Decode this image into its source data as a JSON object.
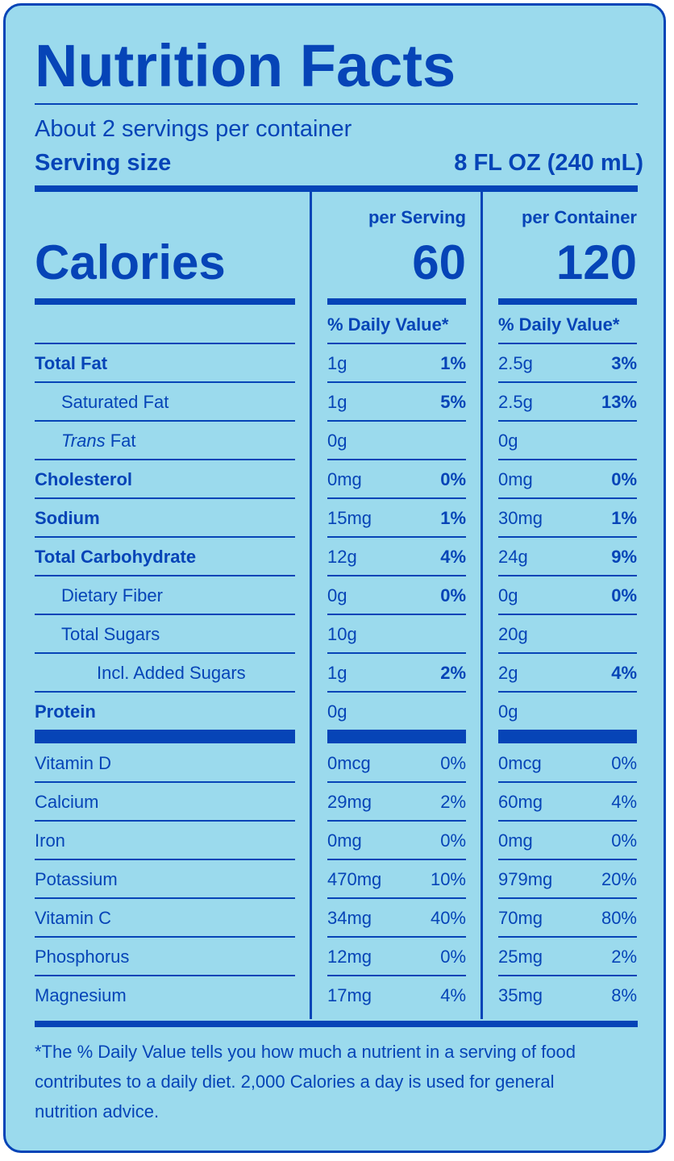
{
  "title": "Nutrition Facts",
  "servings_per_container": "About 2 servings per container",
  "serving_size_label": "Serving size",
  "serving_size_value": "8 FL OZ (240 mL)",
  "columns": {
    "per_serving": "per Serving",
    "per_container": "per Container",
    "daily_value": "% Daily Value*"
  },
  "calories": {
    "label": "Calories",
    "per_serving": "60",
    "per_container": "120"
  },
  "nutrients": [
    {
      "name": "Total Fat",
      "serving_amount": "1g",
      "serving_dv": "1%",
      "container_amount": "2.5g",
      "container_dv": "3%"
    },
    {
      "name": "Saturated Fat",
      "serving_amount": "1g",
      "serving_dv": "5%",
      "container_amount": "2.5g",
      "container_dv": "13%"
    },
    {
      "name_italic": "Trans",
      "name": " Fat",
      "serving_amount": "0g",
      "serving_dv": "",
      "container_amount": "0g",
      "container_dv": ""
    },
    {
      "name": "Cholesterol",
      "serving_amount": "0mg",
      "serving_dv": "0%",
      "container_amount": "0mg",
      "container_dv": "0%"
    },
    {
      "name": "Sodium",
      "serving_amount": "15mg",
      "serving_dv": "1%",
      "container_amount": "30mg",
      "container_dv": "1%"
    },
    {
      "name": "Total Carbohydrate",
      "serving_amount": "12g",
      "serving_dv": "4%",
      "container_amount": "24g",
      "container_dv": "9%"
    },
    {
      "name": "Dietary Fiber",
      "serving_amount": "0g",
      "serving_dv": "0%",
      "container_amount": "0g",
      "container_dv": "0%"
    },
    {
      "name": "Total Sugars",
      "serving_amount": "10g",
      "serving_dv": "",
      "container_amount": "20g",
      "container_dv": ""
    },
    {
      "name": "Incl. Added Sugars",
      "serving_amount": "1g",
      "serving_dv": "2%",
      "container_amount": "2g",
      "container_dv": "4%"
    },
    {
      "name": "Protein",
      "serving_amount": "0g",
      "serving_dv": "",
      "container_amount": "0g",
      "container_dv": ""
    }
  ],
  "vitamins": [
    {
      "name": "Vitamin D",
      "serving_amount": "0mcg",
      "serving_dv": "0%",
      "container_amount": "0mcg",
      "container_dv": "0%"
    },
    {
      "name": "Calcium",
      "serving_amount": "29mg",
      "serving_dv": "2%",
      "container_amount": "60mg",
      "container_dv": "4%"
    },
    {
      "name": "Iron",
      "serving_amount": "0mg",
      "serving_dv": "0%",
      "container_amount": "0mg",
      "container_dv": "0%"
    },
    {
      "name": "Potassium",
      "serving_amount": "470mg",
      "serving_dv": "10%",
      "container_amount": "979mg",
      "container_dv": "20%"
    },
    {
      "name": "Vitamin C",
      "serving_amount": "34mg",
      "serving_dv": "40%",
      "container_amount": "70mg",
      "container_dv": "80%"
    },
    {
      "name": "Phosphorus",
      "serving_amount": "12mg",
      "serving_dv": "0%",
      "container_amount": "25mg",
      "container_dv": "2%"
    },
    {
      "name": "Magnesium",
      "serving_amount": "17mg",
      "serving_dv": "4%",
      "container_amount": "35mg",
      "container_dv": "8%"
    }
  ],
  "footnote": [
    "*The % Daily Value tells you how much a nutrient in a serving of food",
    "contributes to a daily diet. 2,000 Calories a day is used for general",
    "nutrition advice."
  ],
  "colors": {
    "background": "#9bdaed",
    "ink": "#0644b7"
  }
}
